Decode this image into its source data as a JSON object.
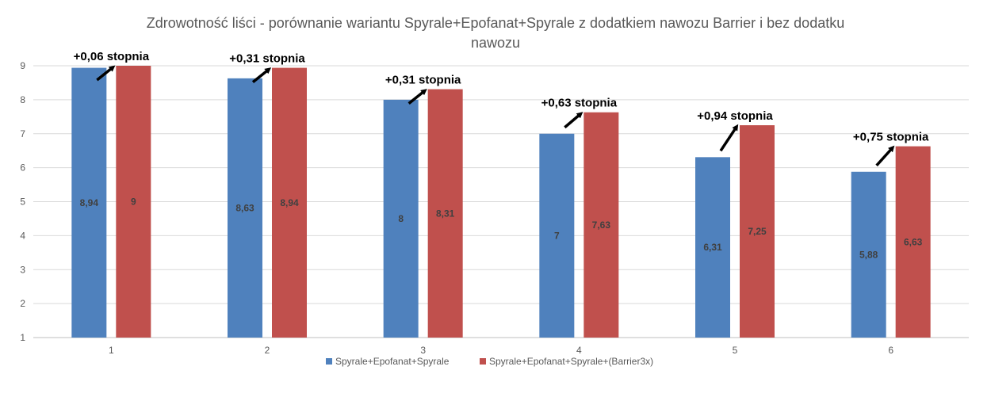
{
  "chart_data": {
    "type": "bar",
    "title_line1": "Zdrowotność liści - porównanie wariantu Spyrale+Epofanat+Spyrale z dodatkiem nawozu Barrier i bez dodatku",
    "title_line2": "nawozu",
    "categories": [
      "1",
      "2",
      "3",
      "4",
      "5",
      "6"
    ],
    "series": [
      {
        "name": "Spyrale+Epofanat+Spyrale",
        "color": "#4f81bd",
        "values": [
          8.94,
          8.63,
          8,
          7,
          6.31,
          5.88
        ],
        "labels": [
          "8,94",
          "8,63",
          "8",
          "7",
          "6,31",
          "5,88"
        ]
      },
      {
        "name": "Spyrale+Epofanat+Spyrale+(Barrier3x)",
        "color": "#c0504d",
        "values": [
          9,
          8.94,
          8.31,
          7.63,
          7.25,
          6.63
        ],
        "labels": [
          "9",
          "8,94",
          "8,31",
          "7,63",
          "7,25",
          "6,63"
        ]
      }
    ],
    "annotations": [
      "+0,06 stopnia",
      "+0,31 stopnia",
      "+0,31 stopnia",
      "+0,63 stopnia",
      "+0,94 stopnia",
      "+0,75 stopnia"
    ],
    "yticks": [
      "1",
      "2",
      "3",
      "4",
      "5",
      "6",
      "7",
      "8",
      "9"
    ],
    "ylim": [
      1,
      9
    ],
    "grid": true,
    "legend": "bottom"
  }
}
